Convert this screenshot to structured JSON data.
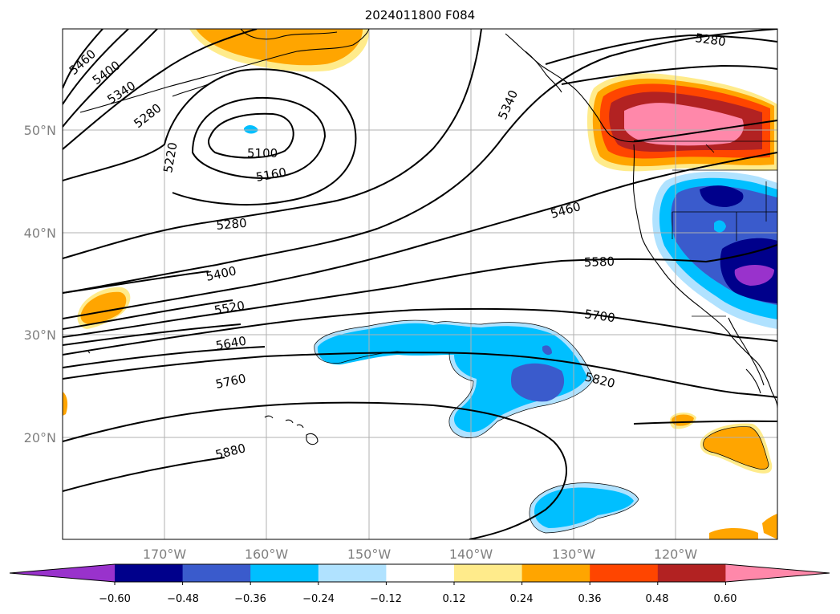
{
  "title": "2024011800 F084",
  "map": {
    "lat_labels": [
      "50°N",
      "40°N",
      "30°N",
      "20°N"
    ],
    "lon_labels": [
      "170°W",
      "160°W",
      "150°W",
      "140°W",
      "130°W",
      "120°W"
    ],
    "contour_labels": [
      "5460",
      "5400",
      "5340",
      "5280",
      "5220",
      "5100",
      "5160",
      "5280",
      "5340",
      "5280",
      "5460",
      "5400",
      "5580",
      "5520",
      "5700",
      "5640",
      "5820",
      "5760",
      "5880"
    ],
    "grid": true,
    "coastline": true
  },
  "colorbar": {
    "ticks": [
      "−0.60",
      "−0.48",
      "−0.36",
      "−0.24",
      "−0.12",
      "0.12",
      "0.24",
      "0.36",
      "0.48",
      "0.60"
    ],
    "colors": [
      "#9932cc",
      "#00008b",
      "#3a5bcc",
      "#00bfff",
      "#b0e2ff",
      "#ffffff",
      "#ffeb8b",
      "#ffa500",
      "#ff4500",
      "#b22222",
      "#ff88aa"
    ]
  }
}
